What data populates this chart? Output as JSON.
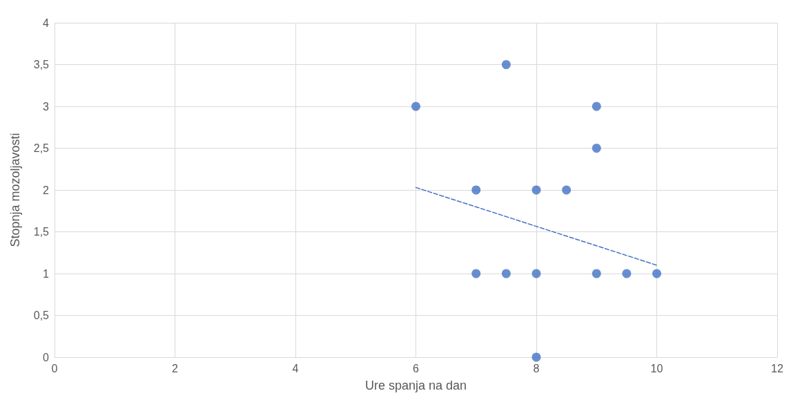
{
  "chart_data": {
    "type": "scatter",
    "xlabel": "Ure spanja na dan",
    "ylabel": "Stopnja mozoljavosti",
    "xlim": [
      0,
      12
    ],
    "xticks": [
      0,
      2,
      4,
      6,
      8,
      10,
      12
    ],
    "ylim": [
      0,
      4
    ],
    "yticks": [
      0,
      {
        "value": 0.5,
        "label": "0,5"
      },
      1,
      {
        "value": 1.5,
        "label": "1,5"
      },
      2,
      {
        "value": 2.5,
        "label": "2,5"
      },
      3,
      {
        "value": 3.5,
        "label": "3,5"
      },
      4
    ],
    "grid": true,
    "marker": "circle",
    "series": [
      {
        "color": "#4472c4",
        "x": [
          6,
          7.5,
          9,
          9,
          7,
          8,
          8.5,
          7,
          7.5,
          8,
          9,
          9.5,
          10,
          8
        ],
        "values": [
          3,
          3.5,
          3,
          2.5,
          2,
          2,
          2,
          1,
          1,
          1,
          1,
          1,
          1,
          0
        ]
      },
      {
        "type": "line",
        "color": "#4472c4",
        "x": [
          6,
          10
        ],
        "values": [
          2.03,
          1.1
        ],
        "line_style": "dashed",
        "marker": "none"
      }
    ]
  }
}
